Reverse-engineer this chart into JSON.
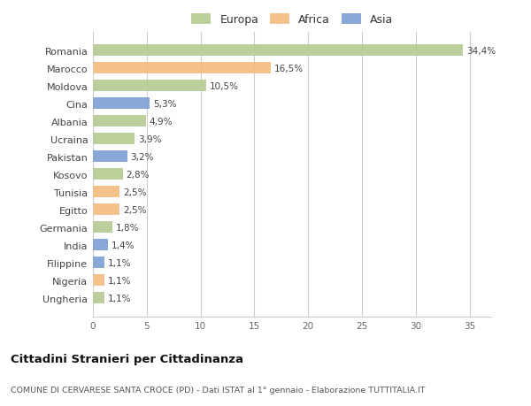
{
  "countries": [
    "Romania",
    "Marocco",
    "Moldova",
    "Cina",
    "Albania",
    "Ucraina",
    "Pakistan",
    "Kosovo",
    "Tunisia",
    "Egitto",
    "Germania",
    "India",
    "Filippine",
    "Nigeria",
    "Ungheria"
  ],
  "values": [
    34.4,
    16.5,
    10.5,
    5.3,
    4.9,
    3.9,
    3.2,
    2.8,
    2.5,
    2.5,
    1.8,
    1.4,
    1.1,
    1.1,
    1.1
  ],
  "labels": [
    "34,4%",
    "16,5%",
    "10,5%",
    "5,3%",
    "4,9%",
    "3,9%",
    "3,2%",
    "2,8%",
    "2,5%",
    "2,5%",
    "1,8%",
    "1,4%",
    "1,1%",
    "1,1%",
    "1,1%"
  ],
  "continents": [
    "Europa",
    "Africa",
    "Europa",
    "Asia",
    "Europa",
    "Europa",
    "Asia",
    "Europa",
    "Africa",
    "Africa",
    "Europa",
    "Asia",
    "Asia",
    "Africa",
    "Europa"
  ],
  "colors": {
    "Europa": "#b5c98e",
    "Africa": "#f5bc80",
    "Asia": "#7b9fd4"
  },
  "xlim": [
    0,
    37
  ],
  "xticks": [
    0,
    5,
    10,
    15,
    20,
    25,
    30,
    35
  ],
  "title": "Cittadini Stranieri per Cittadinanza",
  "subtitle": "COMUNE DI CERVARESE SANTA CROCE (PD) - Dati ISTAT al 1° gennaio - Elaborazione TUTTITALIA.IT",
  "bg_color": "#ffffff",
  "plot_bg_color": "#ffffff",
  "bar_height": 0.65,
  "bar_alpha": 0.9
}
